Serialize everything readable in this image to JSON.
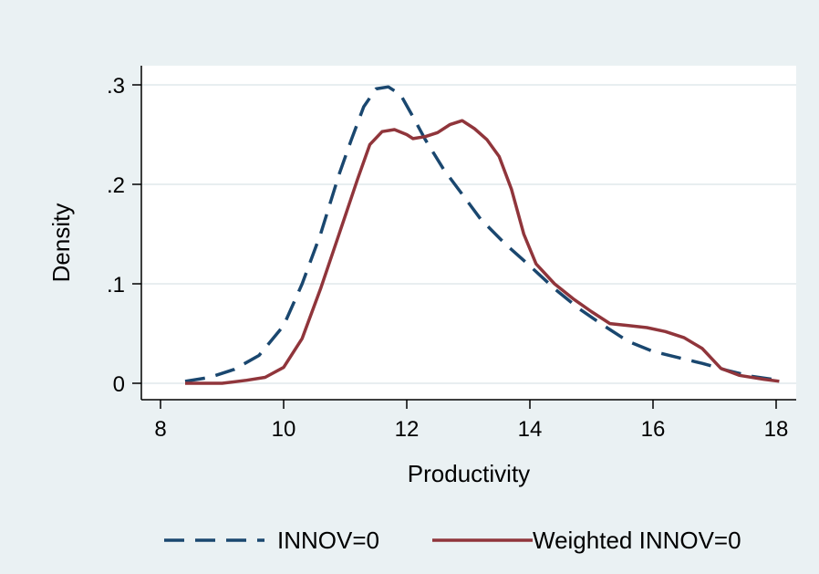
{
  "chart_data": {
    "type": "line",
    "xlabel": "Productivity",
    "ylabel": "Density",
    "xlim": [
      8,
      18
    ],
    "ylim": [
      0,
      0.3
    ],
    "xticks": [
      {
        "value": 8,
        "label": "8"
      },
      {
        "value": 10,
        "label": "10"
      },
      {
        "value": 12,
        "label": "12"
      },
      {
        "value": 14,
        "label": "14"
      },
      {
        "value": 16,
        "label": "16"
      },
      {
        "value": 18,
        "label": "18"
      }
    ],
    "yticks": [
      {
        "value": 0,
        "label": "0"
      },
      {
        "value": 0.1,
        "label": ".1"
      },
      {
        "value": 0.2,
        "label": ".2"
      },
      {
        "value": 0.3,
        "label": ".3"
      }
    ],
    "grid": true,
    "legend_position": "bottom",
    "series": [
      {
        "name": "INNOV=0",
        "color": "#1a476f",
        "style": "dashed",
        "points": [
          [
            8.4,
            0.002
          ],
          [
            8.8,
            0.006
          ],
          [
            9.2,
            0.014
          ],
          [
            9.6,
            0.028
          ],
          [
            10.0,
            0.058
          ],
          [
            10.3,
            0.1
          ],
          [
            10.6,
            0.15
          ],
          [
            10.9,
            0.21
          ],
          [
            11.1,
            0.245
          ],
          [
            11.3,
            0.278
          ],
          [
            11.5,
            0.296
          ],
          [
            11.7,
            0.298
          ],
          [
            11.9,
            0.29
          ],
          [
            12.1,
            0.268
          ],
          [
            12.3,
            0.245
          ],
          [
            12.6,
            0.215
          ],
          [
            12.9,
            0.19
          ],
          [
            13.2,
            0.165
          ],
          [
            13.6,
            0.14
          ],
          [
            14.0,
            0.118
          ],
          [
            14.4,
            0.095
          ],
          [
            14.8,
            0.075
          ],
          [
            15.2,
            0.058
          ],
          [
            15.6,
            0.042
          ],
          [
            16.0,
            0.032
          ],
          [
            16.4,
            0.026
          ],
          [
            16.8,
            0.02
          ],
          [
            17.2,
            0.013
          ],
          [
            17.6,
            0.007
          ],
          [
            18.05,
            0.003
          ]
        ]
      },
      {
        "name": "Weighted INNOV=0",
        "color": "#90353b",
        "style": "solid",
        "points": [
          [
            8.4,
            0.0
          ],
          [
            9.0,
            0.0
          ],
          [
            9.4,
            0.003
          ],
          [
            9.7,
            0.006
          ],
          [
            10.0,
            0.016
          ],
          [
            10.3,
            0.045
          ],
          [
            10.6,
            0.095
          ],
          [
            10.9,
            0.15
          ],
          [
            11.2,
            0.205
          ],
          [
            11.4,
            0.24
          ],
          [
            11.6,
            0.253
          ],
          [
            11.8,
            0.255
          ],
          [
            12.0,
            0.25
          ],
          [
            12.1,
            0.246
          ],
          [
            12.3,
            0.248
          ],
          [
            12.5,
            0.252
          ],
          [
            12.7,
            0.26
          ],
          [
            12.9,
            0.264
          ],
          [
            13.1,
            0.256
          ],
          [
            13.3,
            0.245
          ],
          [
            13.5,
            0.228
          ],
          [
            13.7,
            0.195
          ],
          [
            13.9,
            0.15
          ],
          [
            14.1,
            0.12
          ],
          [
            14.4,
            0.1
          ],
          [
            14.7,
            0.085
          ],
          [
            15.0,
            0.072
          ],
          [
            15.3,
            0.06
          ],
          [
            15.6,
            0.058
          ],
          [
            15.9,
            0.056
          ],
          [
            16.2,
            0.052
          ],
          [
            16.5,
            0.046
          ],
          [
            16.8,
            0.035
          ],
          [
            17.1,
            0.015
          ],
          [
            17.4,
            0.008
          ],
          [
            17.8,
            0.004
          ],
          [
            18.05,
            0.002
          ]
        ]
      }
    ]
  }
}
